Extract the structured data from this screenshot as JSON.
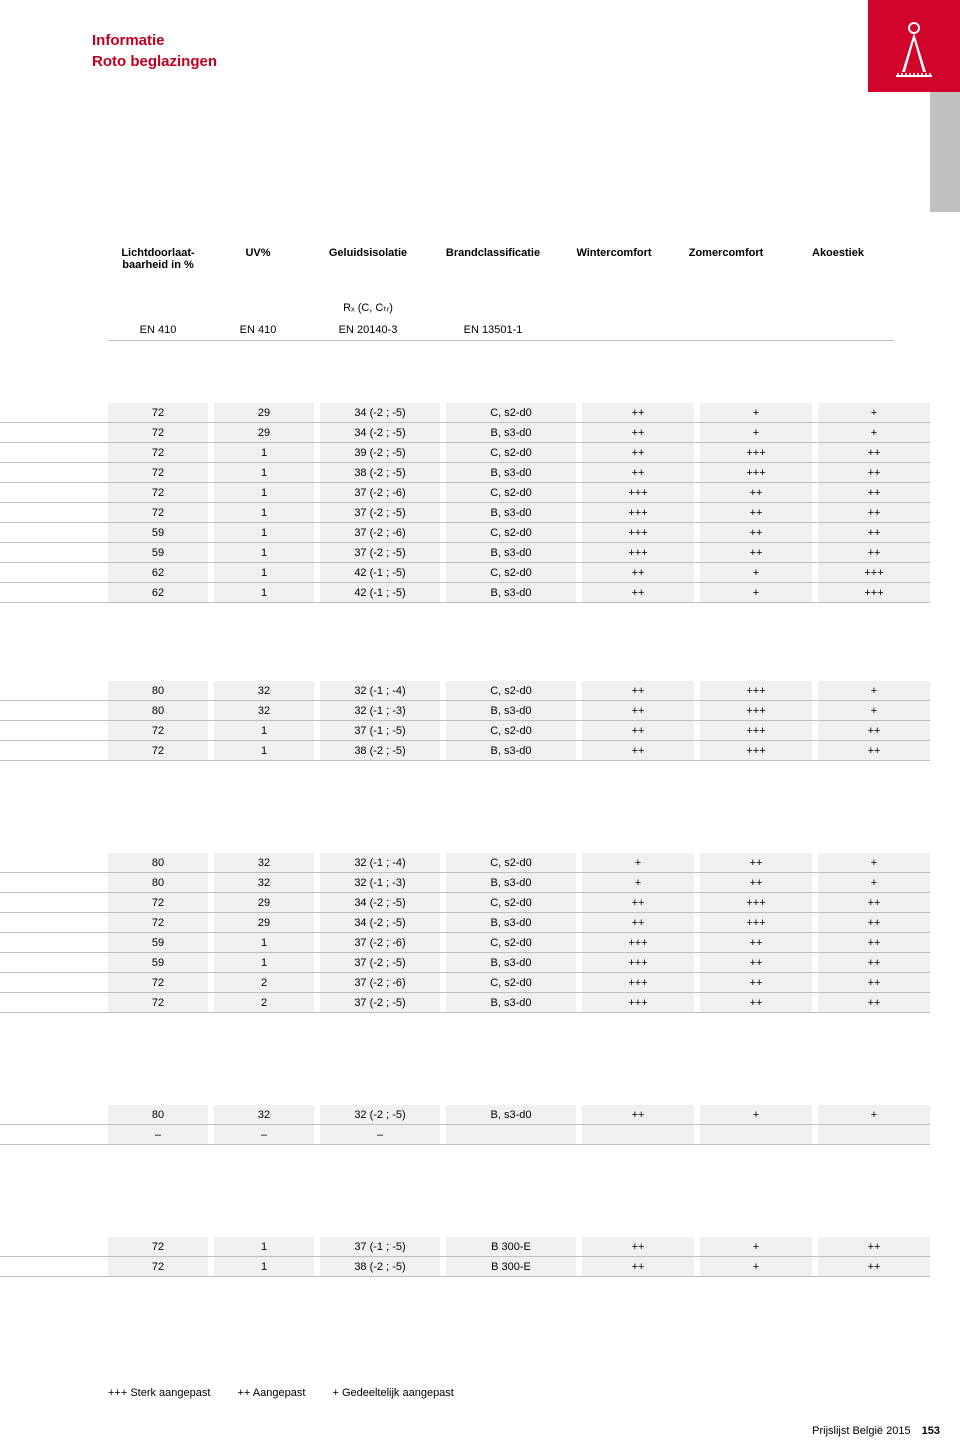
{
  "colors": {
    "accent": "#c00020",
    "accent_red_box": "#d1052c",
    "grey_tab": "#bfc0c0",
    "row_bg": "#f0f0f0",
    "row_alt_bg": "#ffffff",
    "border": "#bfbfbf",
    "text": "#000000",
    "background": "#ffffff"
  },
  "title": {
    "line1": "Informatie",
    "line2": "Roto beglazingen"
  },
  "columns": {
    "h1": "Lichtdoorlaat-\nbaarheid in %",
    "h2": "UV%",
    "h3": "Geluidsisolatie",
    "h4": "Brandclassificatie",
    "h5": "Wintercomfort",
    "h6": "Zomercomfort",
    "h7": "Akoestiek",
    "sub_c3": "Rₓ (C, Cₜᵣ)",
    "en_c1": "EN 410",
    "en_c2": "EN 410",
    "en_c3": "EN 20140-3",
    "en_c4": "EN 13501-1"
  },
  "groups": [
    {
      "rows": [
        [
          "72",
          "29",
          "34 (-2 ; -5)",
          "C, s2-d0",
          "++",
          "+",
          "+"
        ],
        [
          "72",
          "29",
          "34 (-2 ; -5)",
          "B, s3-d0",
          "++",
          "+",
          "+"
        ],
        [
          "72",
          "1",
          "39 (-2 ; -5)",
          "C, s2-d0",
          "++",
          "+++",
          "++"
        ],
        [
          "72",
          "1",
          "38 (-2 ; -5)",
          "B, s3-d0",
          "++",
          "+++",
          "++"
        ],
        [
          "72",
          "1",
          "37 (-2 ; -6)",
          "C, s2-d0",
          "+++",
          "++",
          "++"
        ],
        [
          "72",
          "1",
          "37 (-2 ; -5)",
          "B, s3-d0",
          "+++",
          "++",
          "++"
        ],
        [
          "59",
          "1",
          "37 (-2 ; -6)",
          "C, s2-d0",
          "+++",
          "++",
          "++"
        ],
        [
          "59",
          "1",
          "37 (-2 ; -5)",
          "B, s3-d0",
          "+++",
          "++",
          "++"
        ],
        [
          "62",
          "1",
          "42 (-1 ; -5)",
          "C, s2-d0",
          "++",
          "+",
          "+++"
        ],
        [
          "62",
          "1",
          "42 (-1 ; -5)",
          "B, s3-d0",
          "++",
          "+",
          "+++"
        ]
      ]
    },
    {
      "rows": [
        [
          "80",
          "32",
          "32 (-1 ; -4)",
          "C, s2-d0",
          "++",
          "+++",
          "+"
        ],
        [
          "80",
          "32",
          "32 (-1 ; -3)",
          "B, s3-d0",
          "++",
          "+++",
          "+"
        ],
        [
          "72",
          "1",
          "37 (-1 ; -5)",
          "C, s2-d0",
          "++",
          "+++",
          "++"
        ],
        [
          "72",
          "1",
          "38 (-2 ; -5)",
          "B, s3-d0",
          "++",
          "+++",
          "++"
        ]
      ]
    },
    {
      "rows": [
        [
          "80",
          "32",
          "32 (-1 ; -4)",
          "C, s2-d0",
          "+",
          "++",
          "+"
        ],
        [
          "80",
          "32",
          "32 (-1 ; -3)",
          "B, s3-d0",
          "+",
          "++",
          "+"
        ],
        [
          "72",
          "29",
          "34 (-2 ; -5)",
          "C, s2-d0",
          "++",
          "+++",
          "++"
        ],
        [
          "72",
          "29",
          "34 (-2 ; -5)",
          "B, s3-d0",
          "++",
          "+++",
          "++"
        ],
        [
          "59",
          "1",
          "37 (-2 ; -6)",
          "C, s2-d0",
          "+++",
          "++",
          "++"
        ],
        [
          "59",
          "1",
          "37 (-2 ; -5)",
          "B, s3-d0",
          "+++",
          "++",
          "++"
        ],
        [
          "72",
          "2",
          "37 (-2 ; -6)",
          "C, s2-d0",
          "+++",
          "++",
          "++"
        ],
        [
          "72",
          "2",
          "37 (-2 ; -5)",
          "B, s3-d0",
          "+++",
          "++",
          "++"
        ]
      ]
    },
    {
      "rows": [
        [
          "80",
          "32",
          "32 (-2 ; -5)",
          "B, s3-d0",
          "++",
          "+",
          "+"
        ],
        [
          "–",
          "–",
          "–",
          "",
          "",
          "",
          ""
        ]
      ]
    },
    {
      "rows": [
        [
          "72",
          "1",
          "37 (-1 ; -5)",
          "B 300-E",
          "++",
          "+",
          "++"
        ],
        [
          "72",
          "1",
          "38 (-2 ; -5)",
          "B 300-E",
          "++",
          "+",
          "++"
        ]
      ]
    }
  ],
  "legend": {
    "l1": "+++ Sterk aangepast",
    "l2": "++ Aangepast",
    "l3": "+ Gedeeltelijk aangepast"
  },
  "footer": {
    "text": "Prijslijst België 2015",
    "page": "153"
  }
}
